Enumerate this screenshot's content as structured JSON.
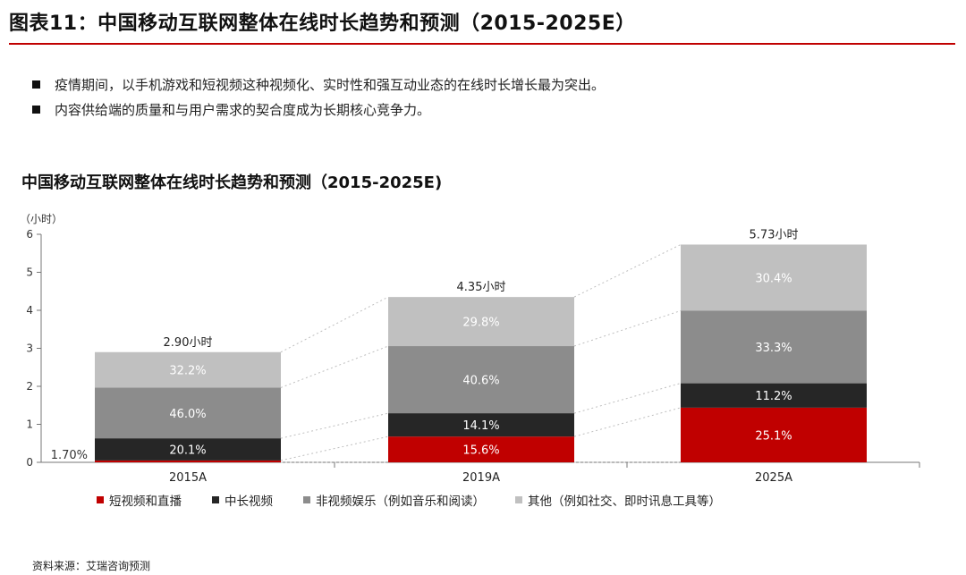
{
  "figure_title": "图表11：中国移动互联网整体在线时长趋势和预测（2015-2025E）",
  "bullets": [
    "疫情期间，以手机游戏和短视频这种视频化、实时性和强互动业态的在线时长增长最为突出。",
    "内容供给端的质量和与用户需求的契合度成为长期核心竞争力。"
  ],
  "source": "资料来源：艾瑞咨询预测",
  "colors": {
    "accent_rule": "#c00000",
    "short_video": "#c00000",
    "mid_long_video": "#262626",
    "non_video": "#8c8c8c",
    "other": "#c0c0c0",
    "connector": "#bfbfbf"
  },
  "chart_data": {
    "type": "bar",
    "stacked": true,
    "title": "中国移动互联网整体在线时长趋势和预测（2015-2025E)",
    "ylabel": "（小时）",
    "xlabel": "",
    "ylim": [
      0,
      6
    ],
    "yticks": [
      "0",
      "1",
      "2",
      "3",
      "4",
      "5",
      "6"
    ],
    "categories": [
      "2015A",
      "2019A",
      "2025A"
    ],
    "totals": [
      2.9,
      4.35,
      5.73
    ],
    "total_labels": [
      "2.90小时",
      "4.35小时",
      "5.73小时"
    ],
    "series": [
      {
        "name": "短视频和直播",
        "color": "#c00000",
        "shares": [
          1.7,
          15.6,
          25.1
        ],
        "labels": [
          "1.70%",
          "15.6%",
          "25.1%"
        ]
      },
      {
        "name": "中长视频",
        "color": "#262626",
        "shares": [
          20.1,
          14.1,
          11.2
        ],
        "labels": [
          "20.1%",
          "14.1%",
          "11.2%"
        ]
      },
      {
        "name": "非视频娱乐（例如音乐和阅读）",
        "color": "#8c8c8c",
        "shares": [
          46.0,
          40.6,
          33.3
        ],
        "labels": [
          "46.0%",
          "40.6%",
          "33.3%"
        ]
      },
      {
        "name": "其他（例如社交、即时讯息工具等）",
        "color": "#c0c0c0",
        "shares": [
          32.2,
          29.8,
          30.4
        ],
        "labels": [
          "32.2%",
          "29.8%",
          "30.4%"
        ]
      }
    ],
    "grid": false,
    "legend_position": "bottom",
    "connectors": "dotted lines linking top and segment boundaries of adjacent bars"
  }
}
